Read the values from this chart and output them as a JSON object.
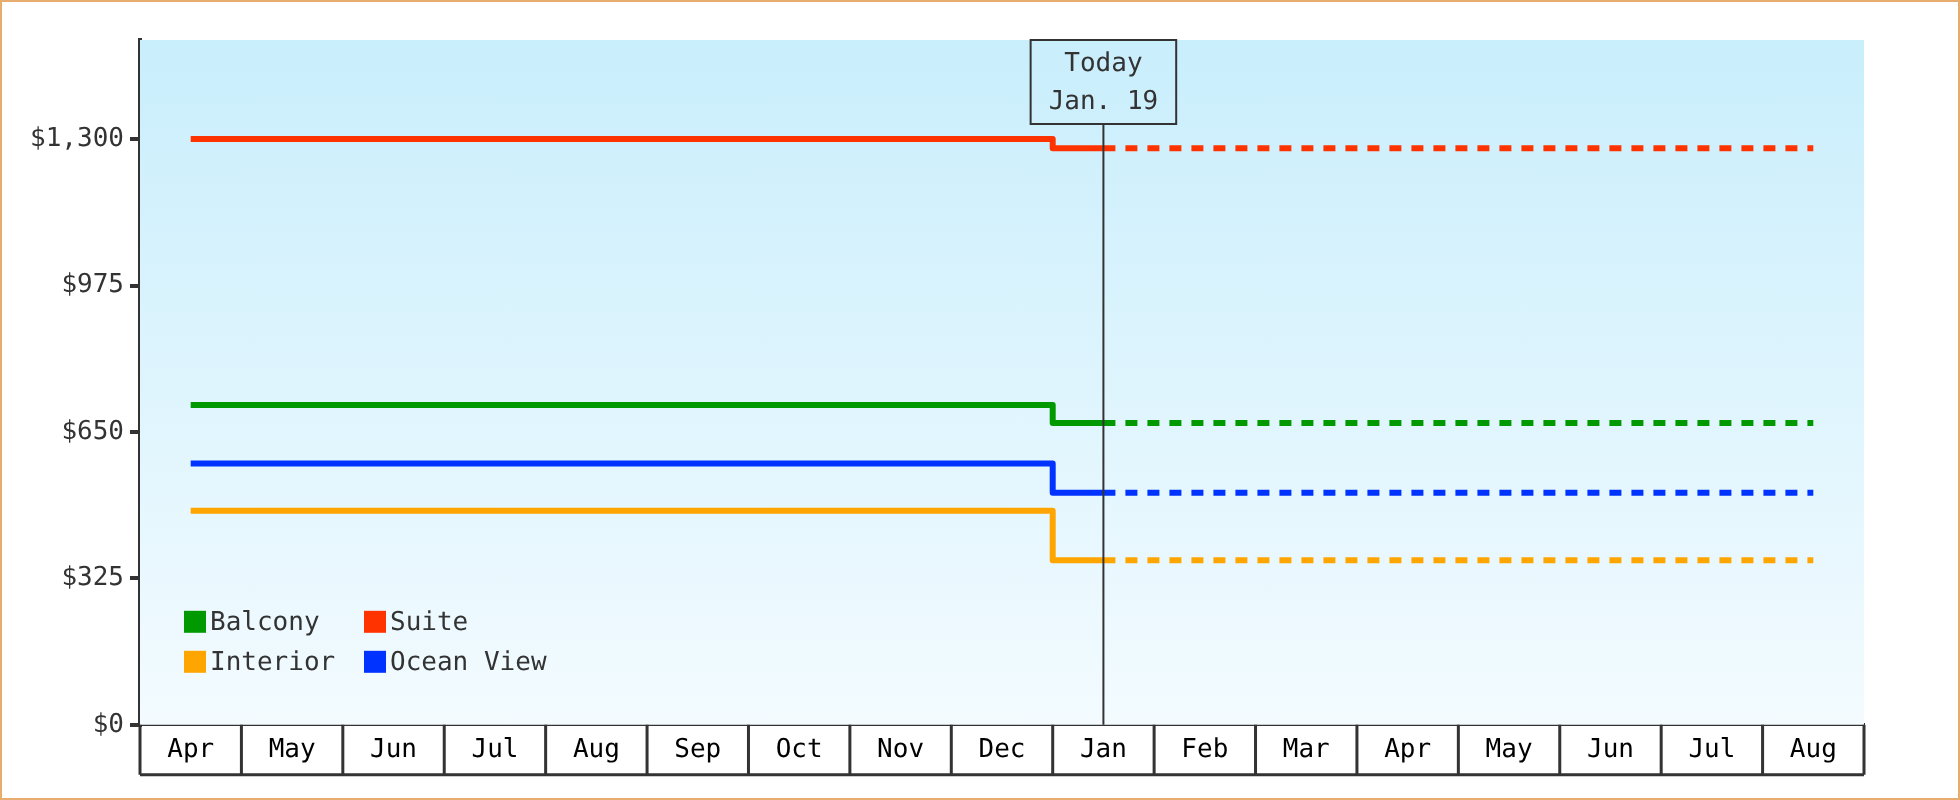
{
  "chart_data": {
    "type": "step",
    "line_style": "solid",
    "legend": "bottom left",
    "grid": false,
    "categories": [
      "Apr",
      "May",
      "Jun",
      "Jul",
      "Aug",
      "Sep",
      "Oct",
      "Nov",
      "Dec",
      "Jan",
      "Feb",
      "Mar",
      "Apr",
      "May",
      "Jun",
      "Jul",
      "Aug"
    ],
    "ylim": [
      0,
      1520
    ],
    "yticks": [
      {
        "value": 0,
        "label": "$0"
      },
      {
        "value": 325,
        "label": "$325"
      },
      {
        "value": 650,
        "label": "$650"
      },
      {
        "value": 975,
        "label": "$975"
      },
      {
        "value": 1300,
        "label": "$1,300"
      }
    ],
    "ref_lines": [
      {
        "axis": "x",
        "value": "Jan",
        "label": "Today\nJan. 19"
      }
    ],
    "series": [
      {
        "name": "Balcony",
        "color": "#009900",
        "values": [
          710,
          710,
          710,
          710,
          710,
          710,
          710,
          710,
          710,
          670,
          null,
          null,
          null,
          null,
          null,
          null,
          null
        ]
      },
      {
        "name": "Suite",
        "color": "#ff3300",
        "values": [
          1300,
          1300,
          1300,
          1300,
          1300,
          1300,
          1300,
          1300,
          1300,
          1280,
          null,
          null,
          null,
          null,
          null,
          null,
          null
        ]
      },
      {
        "name": "Interior",
        "color": "#ffa500",
        "values": [
          475,
          475,
          475,
          475,
          475,
          475,
          475,
          475,
          475,
          365,
          null,
          null,
          null,
          null,
          null,
          null,
          null
        ]
      },
      {
        "name": "Ocean View",
        "color": "#0033ff",
        "values": [
          580,
          580,
          580,
          580,
          580,
          580,
          580,
          580,
          580,
          515,
          null,
          null,
          null,
          null,
          null,
          null,
          null
        ]
      },
      {
        "color": "#009900",
        "line_style": "dashed",
        "values": [
          null,
          null,
          null,
          null,
          null,
          null,
          null,
          null,
          null,
          670,
          670,
          670,
          670,
          670,
          670,
          670,
          670
        ]
      },
      {
        "color": "#ff3300",
        "line_style": "dashed",
        "values": [
          null,
          null,
          null,
          null,
          null,
          null,
          null,
          null,
          null,
          1280,
          1280,
          1280,
          1280,
          1280,
          1280,
          1280,
          1280
        ]
      },
      {
        "color": "#ffa500",
        "line_style": "dashed",
        "values": [
          null,
          null,
          null,
          null,
          null,
          null,
          null,
          null,
          null,
          365,
          365,
          365,
          365,
          365,
          365,
          365,
          365
        ]
      },
      {
        "color": "#0033ff",
        "line_style": "dashed",
        "values": [
          null,
          null,
          null,
          null,
          null,
          null,
          null,
          null,
          null,
          515,
          515,
          515,
          515,
          515,
          515,
          515,
          515
        ]
      }
    ]
  }
}
